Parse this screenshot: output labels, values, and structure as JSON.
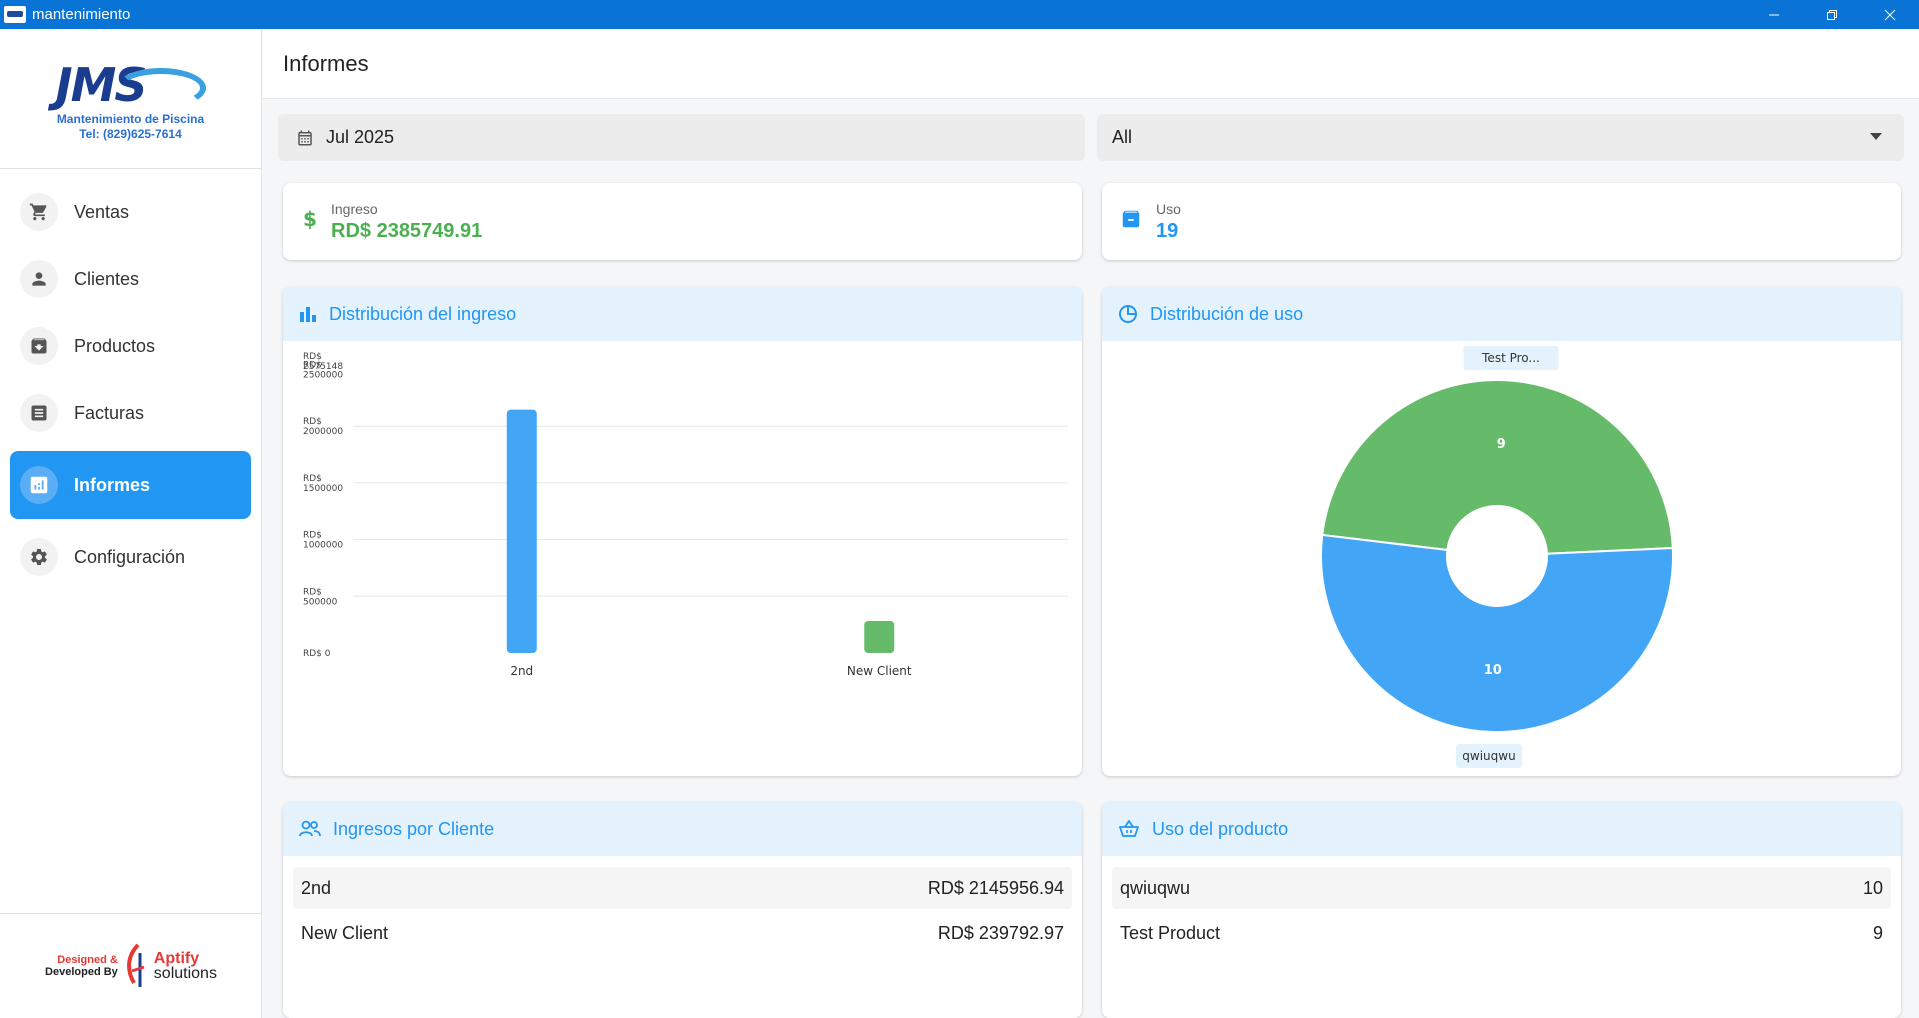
{
  "window": {
    "title": "mantenimiento",
    "minimize": "—",
    "maximize": "❐",
    "close": "✕"
  },
  "sidebar": {
    "logo": {
      "text": "JMS",
      "line1": "Mantenimiento de Piscina",
      "line2": "Tel: (829)625-7614"
    },
    "items": [
      {
        "label": "Ventas",
        "icon": "cart-icon"
      },
      {
        "label": "Clientes",
        "icon": "person-icon"
      },
      {
        "label": "Productos",
        "icon": "archive-icon"
      },
      {
        "label": "Facturas",
        "icon": "invoice-icon"
      },
      {
        "label": "Informes",
        "icon": "report-icon",
        "active": true
      },
      {
        "label": "Configuración",
        "icon": "gear-icon"
      }
    ],
    "credits": {
      "designed": "Designed &",
      "developed": "Developed By",
      "brand1": "Aptify",
      "brand2": "solutions"
    }
  },
  "header": {
    "title": "Informes"
  },
  "filters": {
    "date": "Jul 2025",
    "select": "All"
  },
  "stats": {
    "ingreso": {
      "label": "Ingreso",
      "value": "RD$ 2385749.91",
      "color": "#4caf50"
    },
    "uso": {
      "label": "Uso",
      "value": "19",
      "color": "#2196f3"
    }
  },
  "panels": {
    "income_dist": {
      "title": "Distribución del ingreso"
    },
    "usage_dist": {
      "title": "Distribución de uso"
    },
    "income_by_client": {
      "title": "Ingresos por Cliente",
      "rows": [
        {
          "name": "2nd",
          "value": "RD$ 2145956.94"
        },
        {
          "name": "New Client",
          "value": "RD$ 239792.97"
        }
      ]
    },
    "product_usage": {
      "title": "Uso del producto",
      "rows": [
        {
          "name": "qwiuqwu",
          "value": "10"
        },
        {
          "name": "Test Product",
          "value": "9"
        }
      ]
    }
  },
  "chart_data": [
    {
      "type": "bar",
      "categories": [
        "2nd",
        "New Client"
      ],
      "values": [
        2145956.94,
        239792.97
      ],
      "colors": [
        "#42a5f5",
        "#66bb6a"
      ],
      "ylim": [
        0,
        2575148
      ],
      "yticks": [
        {
          "v": 0,
          "l1": "RD$ 0",
          "l2": ""
        },
        {
          "v": 500000,
          "l1": "RD$",
          "l2": "500000"
        },
        {
          "v": 1000000,
          "l1": "RD$",
          "l2": "1000000"
        },
        {
          "v": 1500000,
          "l1": "RD$",
          "l2": "1500000"
        },
        {
          "v": 2000000,
          "l1": "RD$",
          "l2": "2000000"
        },
        {
          "v": 2500000,
          "l1": "RD$",
          "l2": "2500000"
        },
        {
          "v": 2575148,
          "l1": "RD$",
          "l2": "2575148"
        }
      ]
    },
    {
      "type": "pie",
      "donut": true,
      "slices": [
        {
          "label": "Test Pro...",
          "value": 9,
          "color": "#66bb6a"
        },
        {
          "label": "qwiuqwu",
          "value": 10,
          "color": "#42a5f5"
        }
      ]
    }
  ]
}
